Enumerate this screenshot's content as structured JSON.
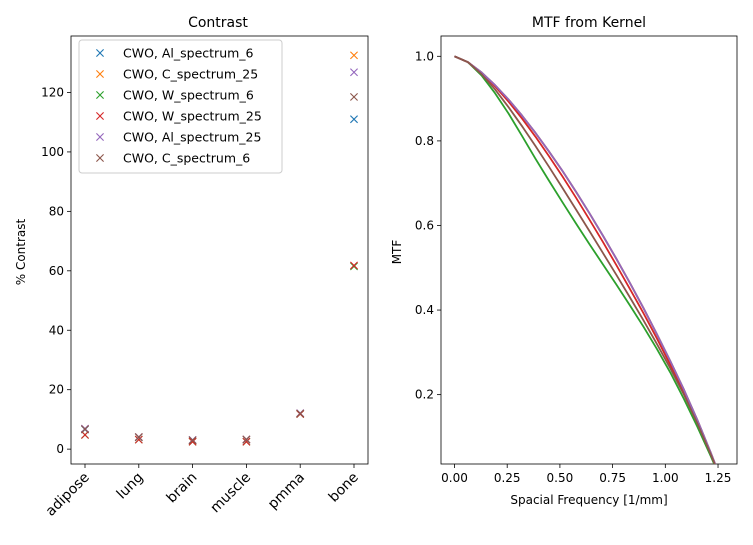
{
  "chart_data": [
    {
      "type": "scatter",
      "title": "Contrast",
      "xlabel": "",
      "ylabel": "% Contrast",
      "categories": [
        "adipose",
        "lung",
        "brain",
        "muscle",
        "pmma",
        "bone"
      ],
      "ylim": [
        -5,
        139
      ],
      "yticks": [
        0,
        20,
        40,
        60,
        80,
        100,
        120
      ],
      "grid": false,
      "legend_position": "top-left",
      "marker": "x",
      "series": [
        {
          "name": "CWO, Al_spectrum_6",
          "color": "#1f77b4",
          "values": [
            6.6,
            4.0,
            3.0,
            3.2,
            12.0,
            111.0
          ]
        },
        {
          "name": "CWO, C_spectrum_25",
          "color": "#ff7f0e",
          "values": [
            6.8,
            4.1,
            3.0,
            3.3,
            12.0,
            132.5
          ]
        },
        {
          "name": "CWO, W_spectrum_6",
          "color": "#2ca02c",
          "values": [
            4.8,
            3.2,
            2.5,
            2.5,
            11.8,
            61.5
          ]
        },
        {
          "name": "CWO, W_spectrum_25",
          "color": "#d62728",
          "values": [
            4.8,
            3.2,
            2.5,
            2.5,
            11.8,
            61.8
          ]
        },
        {
          "name": "CWO, Al_spectrum_25",
          "color": "#9467bd",
          "values": [
            6.9,
            4.1,
            3.1,
            3.3,
            12.1,
            126.8
          ]
        },
        {
          "name": "CWO, C_spectrum_6",
          "color": "#8c564b",
          "values": [
            6.7,
            4.0,
            3.0,
            3.2,
            12.0,
            118.5
          ]
        }
      ]
    },
    {
      "type": "line",
      "title": "MTF from Kernel",
      "xlabel": "Spacial Frequency [1/mm]",
      "ylabel": "MTF",
      "xlim": [
        -0.064,
        1.34
      ],
      "ylim": [
        0.036,
        1.048
      ],
      "xticks": [
        0.0,
        0.25,
        0.5,
        0.75,
        1.0,
        1.25
      ],
      "xtick_labels": [
        "0.00",
        "0.25",
        "0.50",
        "0.75",
        "1.00",
        "1.25"
      ],
      "yticks": [
        0.2,
        0.4,
        0.6,
        0.8,
        1.0
      ],
      "ytick_labels": [
        "0.2",
        "0.4",
        "0.6",
        "0.8",
        "1.0"
      ],
      "grid": false,
      "x": [
        0.0,
        0.064,
        0.128,
        0.192,
        0.256,
        0.32,
        0.384,
        0.448,
        0.512,
        0.576,
        0.64,
        0.704,
        0.768,
        0.832,
        0.896,
        0.96,
        1.024,
        1.088,
        1.152,
        1.216,
        1.28
      ],
      "series": [
        {
          "color": "#1f77b4",
          "values": [
            1.0,
            0.986,
            0.962,
            0.932,
            0.898,
            0.86,
            0.819,
            0.775,
            0.729,
            0.68,
            0.629,
            0.576,
            0.521,
            0.464,
            0.405,
            0.343,
            0.279,
            0.212,
            0.14,
            0.062,
            -0.02
          ]
        },
        {
          "color": "#ff7f0e",
          "values": [
            1.0,
            0.986,
            0.962,
            0.932,
            0.898,
            0.86,
            0.819,
            0.775,
            0.729,
            0.68,
            0.629,
            0.576,
            0.521,
            0.464,
            0.405,
            0.343,
            0.279,
            0.212,
            0.14,
            0.062,
            -0.02
          ]
        },
        {
          "color": "#2ca02c",
          "values": [
            1.0,
            0.986,
            0.955,
            0.913,
            0.865,
            0.812,
            0.758,
            0.706,
            0.655,
            0.605,
            0.556,
            0.508,
            0.46,
            0.411,
            0.361,
            0.308,
            0.252,
            0.19,
            0.124,
            0.054,
            -0.02
          ]
        },
        {
          "color": "#d62728",
          "values": [
            1.0,
            0.986,
            0.961,
            0.929,
            0.893,
            0.853,
            0.81,
            0.764,
            0.716,
            0.666,
            0.614,
            0.561,
            0.506,
            0.45,
            0.393,
            0.333,
            0.27,
            0.205,
            0.136,
            0.06,
            -0.02
          ]
        },
        {
          "color": "#9467bd",
          "values": [
            1.0,
            0.986,
            0.962,
            0.932,
            0.898,
            0.86,
            0.819,
            0.775,
            0.729,
            0.68,
            0.629,
            0.576,
            0.521,
            0.464,
            0.405,
            0.343,
            0.279,
            0.212,
            0.14,
            0.062,
            -0.02
          ]
        },
        {
          "color": "#8c564b",
          "values": [
            1.0,
            0.986,
            0.958,
            0.922,
            0.88,
            0.835,
            0.788,
            0.739,
            0.689,
            0.638,
            0.587,
            0.535,
            0.483,
            0.43,
            0.376,
            0.32,
            0.262,
            0.2,
            0.132,
            0.058,
            -0.02
          ]
        }
      ]
    }
  ]
}
